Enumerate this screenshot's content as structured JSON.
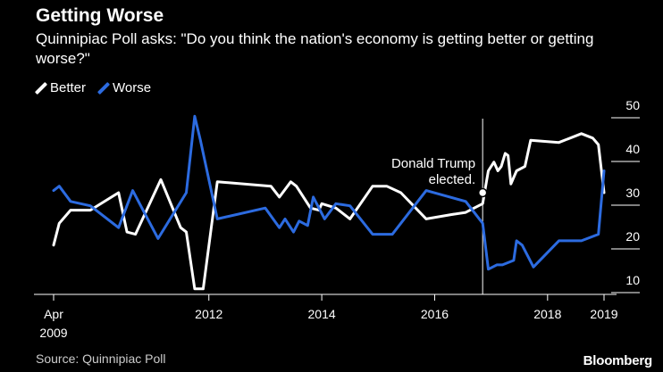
{
  "chart_data": {
    "type": "line",
    "title": "Getting Worse",
    "subtitle": "Quinnipiac Poll asks: \"Do you think the nation's economy is getting better or getting worse?\"",
    "xlabel": "",
    "ylabel": "",
    "xlim": [
      2009.25,
      2019.0
    ],
    "ylim": [
      10,
      50
    ],
    "y_ticks": [
      "10",
      "20",
      "30",
      "40",
      "50"
    ],
    "y_tick_values": [
      10,
      20,
      30,
      40,
      50
    ],
    "x_ticks": [
      {
        "label": "Apr",
        "label2": "2009",
        "x": 2009.25
      },
      {
        "label": "2012",
        "label2": "",
        "x": 2012.0
      },
      {
        "label": "2014",
        "label2": "",
        "x": 2014.0
      },
      {
        "label": "2016",
        "label2": "",
        "x": 2016.0
      },
      {
        "label": "2018",
        "label2": "",
        "x": 2018.0
      },
      {
        "label": "2019",
        "label2": "",
        "x": 2019.0
      }
    ],
    "annotation": {
      "line1": "Donald Trump",
      "line2": "elected.",
      "x": 2016.85,
      "y": 30
    },
    "series": [
      {
        "name": "Better",
        "color": "#ffffff",
        "points": [
          [
            2009.25,
            18
          ],
          [
            2009.35,
            23
          ],
          [
            2009.55,
            26
          ],
          [
            2009.9,
            26
          ],
          [
            2010.4,
            30
          ],
          [
            2010.55,
            21
          ],
          [
            2010.7,
            20.5
          ],
          [
            2011.15,
            33
          ],
          [
            2011.5,
            22
          ],
          [
            2011.6,
            21
          ],
          [
            2011.75,
            8
          ],
          [
            2011.9,
            8
          ],
          [
            2012.15,
            32.5
          ],
          [
            2013.1,
            31.5
          ],
          [
            2013.25,
            29
          ],
          [
            2013.45,
            32.5
          ],
          [
            2013.55,
            31.5
          ],
          [
            2013.8,
            26.5
          ],
          [
            2013.95,
            26
          ],
          [
            2014.0,
            27.5
          ],
          [
            2014.25,
            26.5
          ],
          [
            2014.5,
            24
          ],
          [
            2014.9,
            31.5
          ],
          [
            2015.15,
            31.5
          ],
          [
            2015.4,
            30
          ],
          [
            2015.85,
            24
          ],
          [
            2016.3,
            25
          ],
          [
            2016.55,
            25.5
          ],
          [
            2016.85,
            27.5
          ],
          [
            2016.95,
            35
          ],
          [
            2017.05,
            37
          ],
          [
            2017.12,
            35
          ],
          [
            2017.18,
            36
          ],
          [
            2017.25,
            39
          ],
          [
            2017.3,
            38.5
          ],
          [
            2017.35,
            32
          ],
          [
            2017.45,
            35
          ],
          [
            2017.6,
            36
          ],
          [
            2017.7,
            42
          ],
          [
            2018.2,
            41.5
          ],
          [
            2018.6,
            43.5
          ],
          [
            2018.8,
            42.5
          ],
          [
            2018.9,
            41
          ],
          [
            2019.0,
            30
          ]
        ]
      },
      {
        "name": "Worse",
        "color": "#2c6be0",
        "points": [
          [
            2009.25,
            30.5
          ],
          [
            2009.35,
            31.5
          ],
          [
            2009.55,
            28
          ],
          [
            2009.9,
            27
          ],
          [
            2010.4,
            22
          ],
          [
            2010.65,
            30.5
          ],
          [
            2011.1,
            19.5
          ],
          [
            2011.6,
            30
          ],
          [
            2011.75,
            47.5
          ],
          [
            2011.85,
            42
          ],
          [
            2012.15,
            24
          ],
          [
            2013.0,
            26.5
          ],
          [
            2013.25,
            22
          ],
          [
            2013.35,
            24
          ],
          [
            2013.5,
            21
          ],
          [
            2013.6,
            23.5
          ],
          [
            2013.75,
            22.5
          ],
          [
            2013.85,
            29
          ],
          [
            2014.05,
            24
          ],
          [
            2014.25,
            27.5
          ],
          [
            2014.5,
            27
          ],
          [
            2014.9,
            20.5
          ],
          [
            2015.25,
            20.5
          ],
          [
            2015.4,
            23
          ],
          [
            2015.85,
            30.5
          ],
          [
            2016.55,
            28
          ],
          [
            2016.85,
            23
          ],
          [
            2016.95,
            12.5
          ],
          [
            2017.1,
            13.5
          ],
          [
            2017.2,
            13.5
          ],
          [
            2017.3,
            14
          ],
          [
            2017.4,
            14.5
          ],
          [
            2017.45,
            19
          ],
          [
            2017.55,
            18
          ],
          [
            2017.75,
            13
          ],
          [
            2018.2,
            19
          ],
          [
            2018.6,
            19
          ],
          [
            2018.9,
            20.5
          ],
          [
            2019.0,
            35
          ]
        ]
      }
    ],
    "source": "Source: Quinnipiac Poll",
    "brand": "Bloomberg"
  }
}
